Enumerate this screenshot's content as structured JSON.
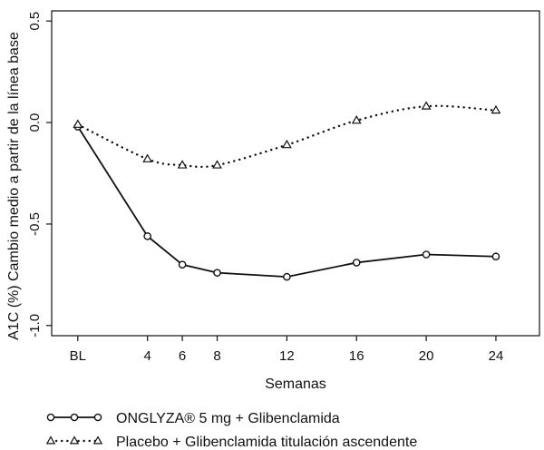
{
  "chart_data": {
    "type": "line",
    "xlabel": "Semanas",
    "ylabel": "A1C (%) Cambio medio a partir de la línea base",
    "x": [
      0,
      4,
      6,
      8,
      12,
      16,
      20,
      24
    ],
    "xtick_labels": [
      "BL",
      "4",
      "6",
      "8",
      "12",
      "16",
      "20",
      "24"
    ],
    "xlim": [
      -1.5,
      26.5
    ],
    "ylim": [
      -1.05,
      0.55
    ],
    "yticks": [
      0.5,
      0.0,
      -0.5,
      -1.0
    ],
    "ytick_labels": [
      "0.5",
      "0.0",
      "-0.5",
      "-1.0"
    ],
    "grid": false,
    "legend_position": "bottom",
    "series": [
      {
        "name": "ONGLYZA®  5 mg + Glibenclamida",
        "values": [
          -0.02,
          -0.56,
          -0.7,
          -0.74,
          -0.76,
          -0.69,
          -0.65,
          -0.66
        ],
        "line_style": "solid",
        "marker": "circle",
        "color": "#111111"
      },
      {
        "name": "Placebo + Glibenclamida titulación ascendente",
        "values": [
          -0.01,
          -0.18,
          -0.21,
          -0.21,
          -0.11,
          0.01,
          0.08,
          0.06
        ],
        "line_style": "dotted",
        "marker": "triangle",
        "color": "#111111"
      }
    ]
  }
}
